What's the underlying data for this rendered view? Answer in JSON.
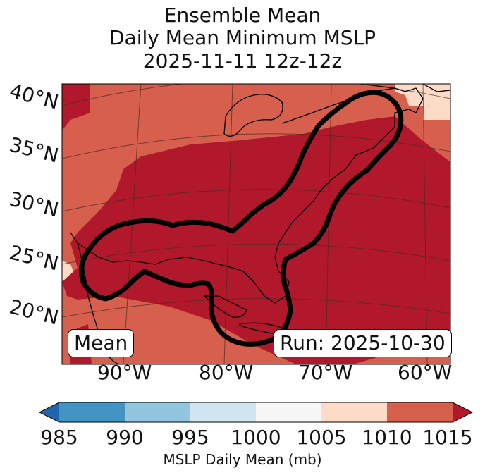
{
  "title": {
    "line1": "Ensemble Mean",
    "line2": "Daily Mean Minimum MSLP",
    "line3": "2025-11-11 12z-12z"
  },
  "map": {
    "lat_labels": [
      "40°N",
      "35°N",
      "30°N",
      "25°N",
      "20°N"
    ],
    "lon_labels": [
      "90°W",
      "80°W",
      "70°W",
      "60°W"
    ],
    "stat_label": "Mean",
    "run_label": "Run: 2025-10-30"
  },
  "colorbar": {
    "label": "MSLP Daily Mean (mb)",
    "ticks": [
      "985",
      "990",
      "995",
      "1000",
      "1005",
      "1010",
      "1015"
    ],
    "colors": {
      "below": "#2166ac",
      "b985_990": "#4393c3",
      "b990_995": "#92c5de",
      "b995_1000": "#d1e5f0",
      "b1000_1005": "#f7f7f7",
      "b1005_1010": "#fddbc7",
      "b1010_1015": "#d6604d",
      "above": "#b2182b"
    }
  }
}
